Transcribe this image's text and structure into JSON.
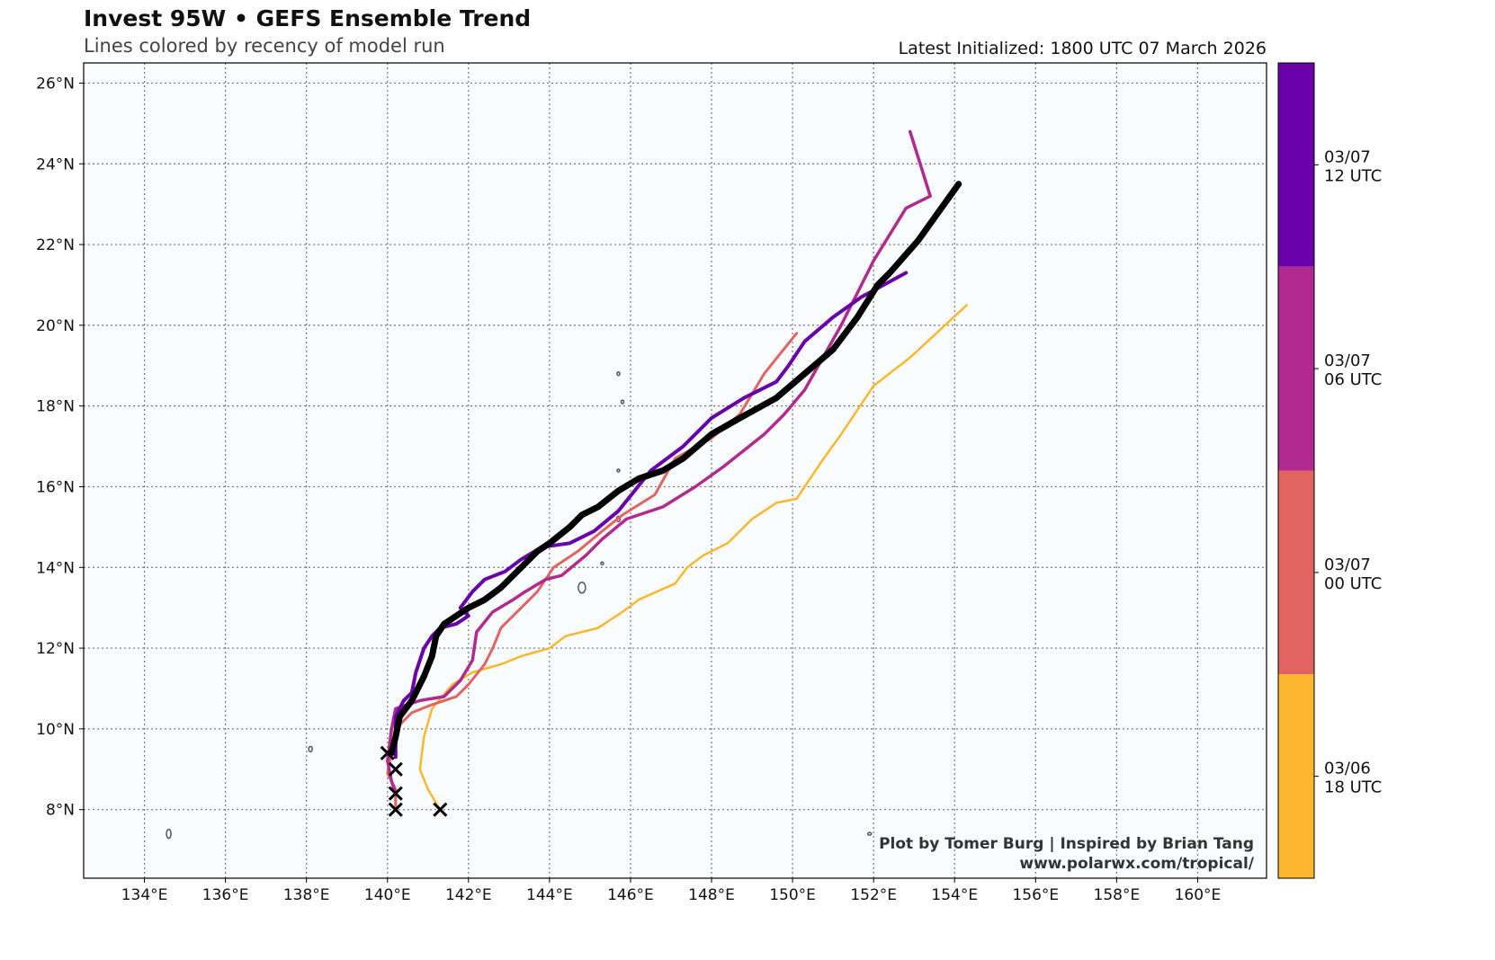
{
  "chart_data": {
    "type": "line",
    "title": "Invest 95W • GEFS Ensemble Trend",
    "subtitle": "Lines colored by recency of model run",
    "latest_initialized": "Latest Initialized: 1800 UTC 07 March 2026",
    "credit_line1": "Plot by Tomer Burg | Inspired by Brian Tang",
    "credit_line2": "www.polarwx.com/tropical/",
    "map": {
      "lon_range": [
        132.5,
        161.7
      ],
      "lat_range": [
        6.3,
        26.5
      ],
      "grid": true,
      "grid_style": "dotted",
      "background": "#f8fcfd"
    },
    "x_ticks": [
      "134°E",
      "136°E",
      "138°E",
      "140°E",
      "142°E",
      "144°E",
      "146°E",
      "148°E",
      "150°E",
      "152°E",
      "154°E",
      "156°E",
      "158°E",
      "160°E"
    ],
    "x_tick_values": [
      134,
      136,
      138,
      140,
      142,
      144,
      146,
      148,
      150,
      152,
      154,
      156,
      158,
      160
    ],
    "y_ticks": [
      "8°N",
      "10°N",
      "12°N",
      "14°N",
      "16°N",
      "18°N",
      "20°N",
      "22°N",
      "24°N",
      "26°N"
    ],
    "y_tick_values": [
      8,
      10,
      12,
      14,
      16,
      18,
      20,
      22,
      24,
      26
    ],
    "colorbar": {
      "position": "right",
      "entries": [
        {
          "label_line1": "03/07",
          "label_line2": "12 UTC",
          "color": "#6a00a8"
        },
        {
          "label_line1": "03/07",
          "label_line2": "06 UTC",
          "color": "#b12a90"
        },
        {
          "label_line1": "03/07",
          "label_line2": "00 UTC",
          "color": "#e16462"
        },
        {
          "label_line1": "03/06",
          "label_line2": "18 UTC",
          "color": "#fcb62f"
        }
      ]
    },
    "series": [
      {
        "run": "03/06 18 UTC",
        "color": "#fcb62f",
        "width": 2.5,
        "points": [
          [
            154.3,
            20.5
          ],
          [
            152.9,
            19.2
          ],
          [
            152.0,
            18.5
          ],
          [
            151.6,
            17.9
          ],
          [
            151.2,
            17.3
          ],
          [
            150.7,
            16.6
          ],
          [
            150.1,
            15.7
          ],
          [
            149.6,
            15.6
          ],
          [
            149.0,
            15.2
          ],
          [
            148.4,
            14.6
          ],
          [
            147.8,
            14.3
          ],
          [
            147.4,
            14.0
          ],
          [
            147.1,
            13.6
          ],
          [
            146.2,
            13.2
          ],
          [
            145.8,
            12.9
          ],
          [
            145.2,
            12.5
          ],
          [
            144.4,
            12.3
          ],
          [
            144.0,
            12.0
          ],
          [
            143.3,
            11.8
          ],
          [
            142.8,
            11.6
          ],
          [
            142.1,
            11.4
          ],
          [
            141.6,
            11.1
          ],
          [
            141.1,
            10.5
          ],
          [
            140.9,
            9.8
          ],
          [
            140.8,
            9.0
          ],
          [
            141.0,
            8.5
          ],
          [
            141.3,
            8.0
          ]
        ]
      },
      {
        "run": "03/07 00 UTC",
        "color": "#e16462",
        "width": 3,
        "points": [
          [
            150.1,
            19.8
          ],
          [
            149.3,
            18.8
          ],
          [
            148.7,
            17.8
          ],
          [
            148.0,
            17.2
          ],
          [
            147.1,
            16.7
          ],
          [
            146.6,
            15.8
          ],
          [
            145.8,
            15.3
          ],
          [
            145.3,
            14.9
          ],
          [
            144.7,
            14.4
          ],
          [
            144.1,
            14.0
          ],
          [
            143.7,
            13.4
          ],
          [
            143.3,
            13.0
          ],
          [
            143.0,
            12.7
          ],
          [
            142.8,
            12.5
          ],
          [
            142.6,
            12.0
          ],
          [
            142.4,
            11.6
          ],
          [
            142.0,
            11.1
          ],
          [
            141.7,
            10.8
          ],
          [
            141.1,
            10.6
          ],
          [
            140.6,
            10.4
          ],
          [
            140.2,
            10.0
          ],
          [
            140.0,
            8.9
          ],
          [
            140.2,
            8.5
          ],
          [
            140.2,
            8.0
          ]
        ]
      },
      {
        "run": "03/07 06 UTC",
        "color": "#b12a90",
        "width": 3.5,
        "points": [
          [
            152.9,
            24.8
          ],
          [
            153.4,
            23.2
          ],
          [
            152.8,
            22.9
          ],
          [
            152.0,
            21.6
          ],
          [
            151.2,
            20.0
          ],
          [
            150.3,
            18.4
          ],
          [
            149.8,
            17.8
          ],
          [
            149.3,
            17.3
          ],
          [
            148.3,
            16.5
          ],
          [
            147.6,
            16.0
          ],
          [
            146.8,
            15.5
          ],
          [
            145.9,
            15.2
          ],
          [
            145.3,
            14.7
          ],
          [
            144.9,
            14.3
          ],
          [
            144.3,
            13.8
          ],
          [
            143.9,
            13.7
          ],
          [
            143.4,
            13.4
          ],
          [
            143.1,
            13.2
          ],
          [
            142.6,
            12.9
          ],
          [
            142.2,
            12.4
          ],
          [
            142.1,
            11.7
          ],
          [
            141.8,
            11.2
          ],
          [
            141.4,
            10.8
          ],
          [
            140.8,
            10.7
          ],
          [
            140.2,
            10.5
          ],
          [
            140.1,
            10.0
          ],
          [
            140.0,
            9.2
          ],
          [
            140.1,
            8.7
          ],
          [
            140.2,
            8.4
          ]
        ]
      },
      {
        "run": "03/07 12 UTC",
        "color": "#6a00a8",
        "width": 4,
        "points": [
          [
            140.2,
            9.3
          ],
          [
            140.2,
            10.3
          ],
          [
            140.4,
            10.7
          ],
          [
            140.6,
            10.9
          ],
          [
            140.7,
            11.4
          ],
          [
            140.9,
            12.0
          ],
          [
            141.1,
            12.3
          ],
          [
            141.3,
            12.5
          ],
          [
            141.7,
            12.6
          ],
          [
            142.0,
            12.8
          ],
          [
            141.8,
            13.0
          ],
          [
            142.1,
            13.4
          ],
          [
            142.4,
            13.7
          ],
          [
            142.9,
            13.9
          ],
          [
            143.3,
            14.2
          ],
          [
            143.8,
            14.5
          ],
          [
            144.5,
            14.6
          ],
          [
            145.1,
            14.9
          ],
          [
            145.7,
            15.4
          ],
          [
            146.1,
            15.9
          ],
          [
            146.5,
            16.4
          ],
          [
            147.3,
            17.0
          ],
          [
            148.0,
            17.7
          ],
          [
            148.8,
            18.2
          ],
          [
            149.6,
            18.6
          ],
          [
            149.9,
            19.0
          ],
          [
            150.3,
            19.6
          ],
          [
            151.0,
            20.2
          ],
          [
            151.7,
            20.7
          ],
          [
            152.8,
            21.3
          ]
        ]
      },
      {
        "run": "latest",
        "color": "#000000",
        "width": 7,
        "points": [
          [
            140.1,
            9.4
          ],
          [
            140.2,
            9.8
          ],
          [
            140.3,
            10.3
          ],
          [
            140.6,
            10.7
          ],
          [
            140.9,
            11.3
          ],
          [
            141.1,
            11.8
          ],
          [
            141.2,
            12.3
          ],
          [
            141.4,
            12.6
          ],
          [
            141.7,
            12.8
          ],
          [
            142.0,
            13.0
          ],
          [
            142.4,
            13.2
          ],
          [
            142.8,
            13.5
          ],
          [
            143.2,
            13.9
          ],
          [
            143.7,
            14.4
          ],
          [
            144.0,
            14.6
          ],
          [
            144.5,
            15.0
          ],
          [
            144.8,
            15.3
          ],
          [
            145.2,
            15.5
          ],
          [
            145.7,
            15.9
          ],
          [
            146.2,
            16.2
          ],
          [
            146.8,
            16.4
          ],
          [
            147.3,
            16.7
          ],
          [
            148.0,
            17.3
          ],
          [
            148.7,
            17.7
          ],
          [
            149.6,
            18.2
          ],
          [
            150.3,
            18.8
          ],
          [
            151.0,
            19.4
          ],
          [
            151.6,
            20.2
          ],
          [
            152.1,
            21.0
          ],
          [
            152.4,
            21.3
          ],
          [
            153.1,
            22.1
          ],
          [
            154.1,
            23.5
          ]
        ]
      }
    ],
    "genesis_markers": [
      [
        140.0,
        9.4
      ],
      [
        140.2,
        9.0
      ],
      [
        140.2,
        8.4
      ],
      [
        140.2,
        8.0
      ],
      [
        141.3,
        8.0
      ]
    ]
  }
}
